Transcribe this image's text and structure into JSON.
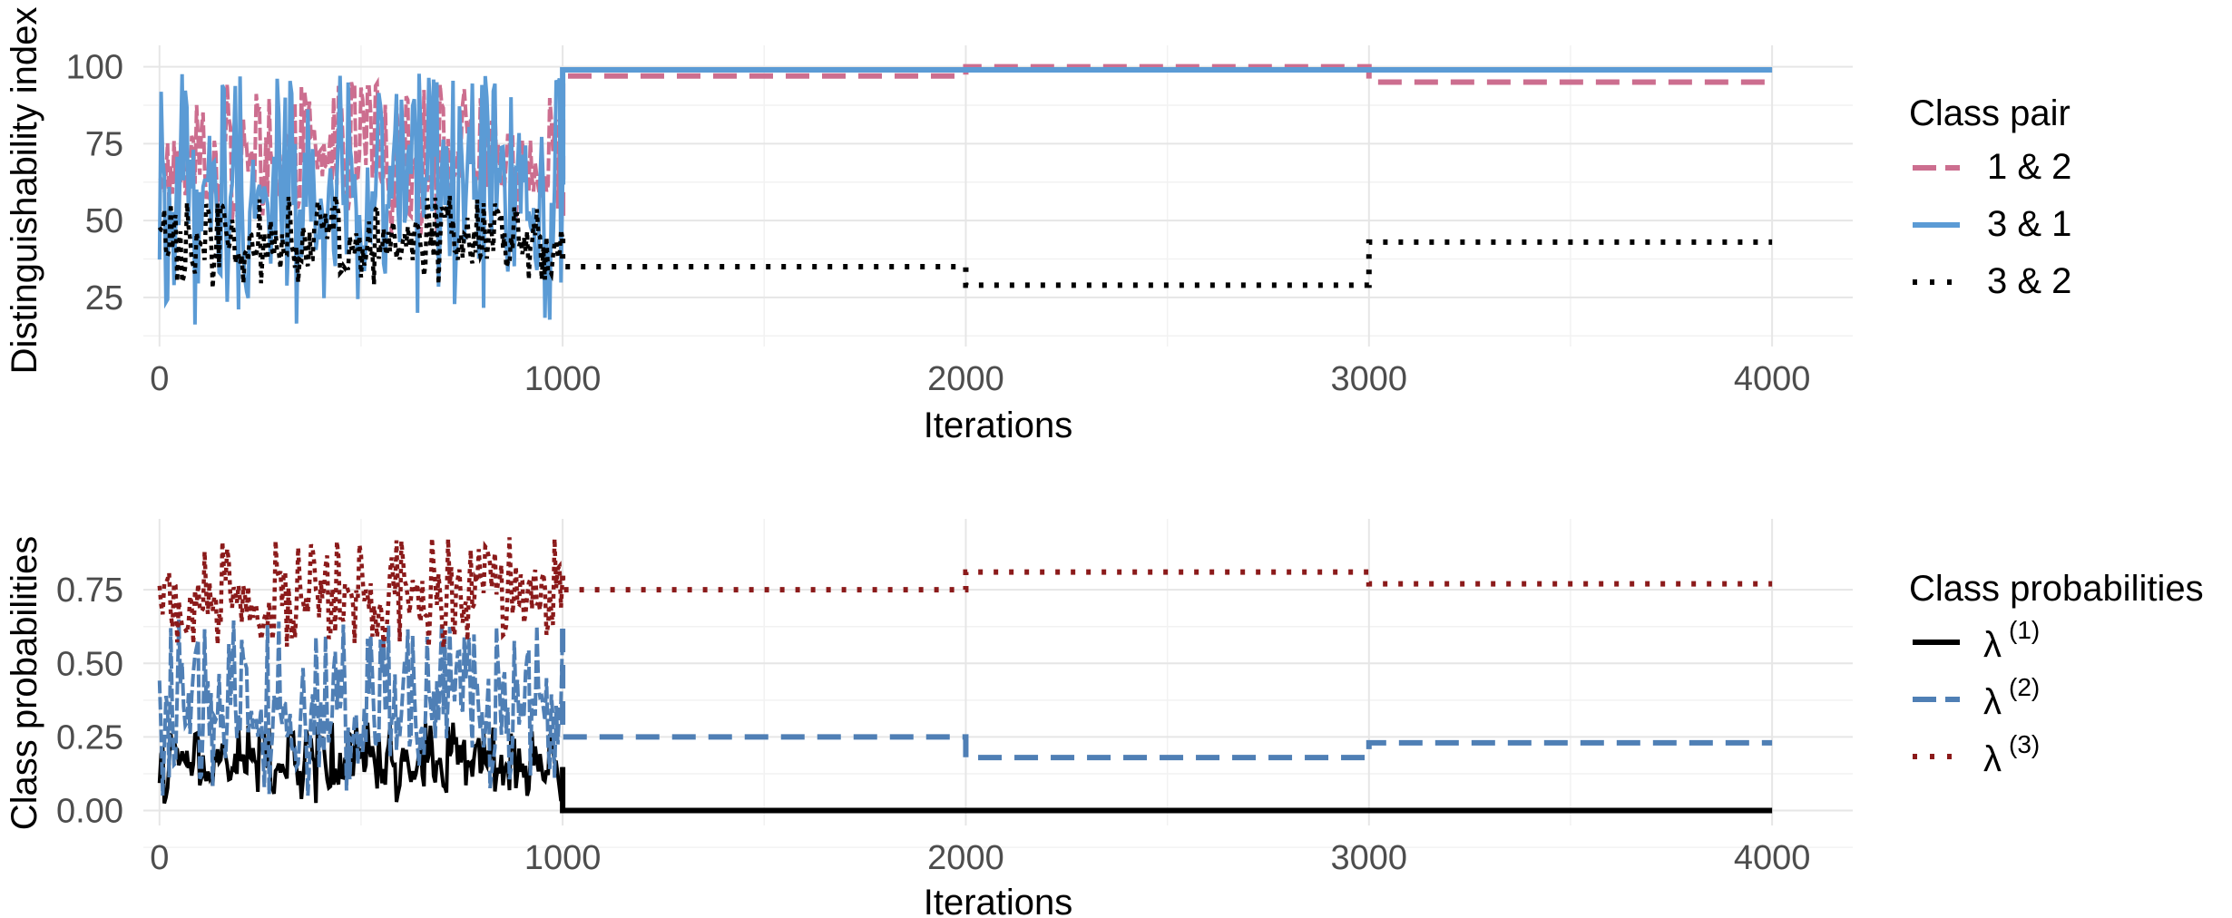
{
  "chart_data": [
    {
      "type": "line",
      "xlabel": "Iterations",
      "ylabel": "Distinguishability index",
      "xlim": [
        -40,
        4200
      ],
      "ylim": [
        12,
        104
      ],
      "xticks": [
        0,
        1000,
        2000,
        3000,
        4000
      ],
      "xtick_labels": [
        "0",
        "1000",
        "2000",
        "3000",
        "4000"
      ],
      "yticks": [
        25,
        50,
        75,
        100
      ],
      "ytick_labels": [
        "25",
        "50",
        "75",
        "100"
      ],
      "grid": true,
      "legend": {
        "title": "Class pair",
        "placement": "right",
        "entries": [
          "1 & 2",
          "3 & 1",
          "3 & 2"
        ]
      },
      "noisy_phase": {
        "x_range": [
          0,
          1000
        ],
        "description_values": {
          "1 & 2": {
            "typical_range": [
              45,
              95
            ]
          },
          "3 & 1": {
            "typical_range": [
              15,
              98
            ]
          },
          "3 & 2": {
            "typical_range": [
              28,
              58
            ]
          }
        }
      },
      "series": [
        {
          "name": "1 & 2",
          "color": "#CC6E8F",
          "dash": "dashed",
          "steps": [
            {
              "x": [
                1000,
                2000
              ],
              "y": 97
            },
            {
              "x": [
                2000,
                3000
              ],
              "y": 100
            },
            {
              "x": [
                3000,
                4000
              ],
              "y": 95
            }
          ]
        },
        {
          "name": "3 & 1",
          "color": "#5B9BD5",
          "dash": "solid",
          "steps": [
            {
              "x": [
                1000,
                4000
              ],
              "y": 99
            }
          ]
        },
        {
          "name": "3 & 2",
          "color": "#000000",
          "dash": "dotted",
          "steps": [
            {
              "x": [
                1000,
                2000
              ],
              "y": 35
            },
            {
              "x": [
                2000,
                3000
              ],
              "y": 29
            },
            {
              "x": [
                3000,
                4000
              ],
              "y": 43
            }
          ]
        }
      ]
    },
    {
      "type": "line",
      "xlabel": "Iterations",
      "ylabel": "Class probabilities",
      "xlim": [
        -40,
        4200
      ],
      "ylim": [
        -0.02,
        0.96
      ],
      "xticks": [
        0,
        1000,
        2000,
        3000,
        4000
      ],
      "xtick_labels": [
        "0",
        "1000",
        "2000",
        "3000",
        "4000"
      ],
      "yticks": [
        0.0,
        0.25,
        0.5,
        0.75
      ],
      "ytick_labels": [
        "0.00",
        "0.25",
        "0.50",
        "0.75"
      ],
      "grid": true,
      "legend": {
        "title": "Class probabilities",
        "placement": "right",
        "entries": [
          {
            "base": "λ",
            "sup": "(1)"
          },
          {
            "base": "λ",
            "sup": "(2)"
          },
          {
            "base": "λ",
            "sup": "(3)"
          }
        ]
      },
      "noisy_phase": {
        "x_range": [
          0,
          1000
        ],
        "description_values": {
          "λ(1)": {
            "typical_range": [
              0.02,
              0.3
            ]
          },
          "λ(2)": {
            "typical_range": [
              0.05,
              0.65
            ]
          },
          "λ(3)": {
            "typical_range": [
              0.55,
              0.93
            ]
          }
        }
      },
      "series": [
        {
          "name": "λ(1)",
          "color": "#000000",
          "dash": "solid",
          "steps": [
            {
              "x": [
                1000,
                4000
              ],
              "y": 0.0
            }
          ]
        },
        {
          "name": "λ(2)",
          "color": "#4F7FB5",
          "dash": "dashed",
          "steps": [
            {
              "x": [
                1000,
                2000
              ],
              "y": 0.25
            },
            {
              "x": [
                2000,
                3000
              ],
              "y": 0.18
            },
            {
              "x": [
                3000,
                4000
              ],
              "y": 0.23
            }
          ]
        },
        {
          "name": "λ(3)",
          "color": "#8B1A1A",
          "dash": "dotted",
          "steps": [
            {
              "x": [
                1000,
                2000
              ],
              "y": 0.75
            },
            {
              "x": [
                2000,
                3000
              ],
              "y": 0.81
            },
            {
              "x": [
                3000,
                4000
              ],
              "y": 0.77
            }
          ]
        }
      ]
    }
  ]
}
